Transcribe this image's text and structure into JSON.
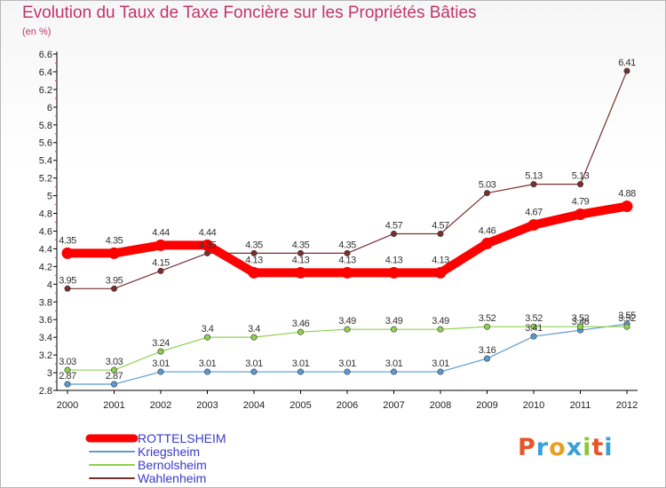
{
  "header": {
    "title": "Evolution du Taux de Taxe Foncière sur les Propriétés Bâties",
    "subtitle": "(en %)"
  },
  "logo": {
    "text": "Proxiti",
    "colors": [
      "#e8542a",
      "#3aa0d8",
      "#e8a020",
      "#3aa0d8",
      "#8cc63f",
      "#e8542a",
      "#3aa0d8"
    ]
  },
  "chart_data": {
    "type": "line",
    "x": [
      "2000",
      "2001",
      "2002",
      "2003",
      "2004",
      "2005",
      "2006",
      "2007",
      "2008",
      "2009",
      "2010",
      "2011",
      "2012"
    ],
    "ylim": [
      2.8,
      6.6
    ],
    "yticks": [
      "2.8",
      "3",
      "3.2",
      "3.4",
      "3.6",
      "3.8",
      "4",
      "4.2",
      "4.4",
      "4.6",
      "4.8",
      "5",
      "5.2",
      "5.4",
      "5.6",
      "5.8",
      "6",
      "6.2",
      "6.4",
      "6.6"
    ],
    "grid": false,
    "legend_position": "bottom-left",
    "series": [
      {
        "name": "ROTTELSHEIM",
        "color": "#ff0000",
        "values": [
          4.35,
          4.35,
          4.44,
          4.44,
          4.13,
          4.13,
          4.13,
          4.13,
          4.13,
          4.46,
          4.67,
          4.79,
          4.88
        ],
        "labels": [
          "4.35",
          "4.35",
          "4.44",
          "4.44",
          "4.13",
          "4.13",
          "4.13",
          "4.13",
          "4.13",
          "4.46",
          "4.67",
          "4.79",
          "4.88"
        ]
      },
      {
        "name": "Kriegsheim",
        "color": "#5b9bd5",
        "values": [
          2.87,
          2.87,
          3.01,
          3.01,
          3.01,
          3.01,
          3.01,
          3.01,
          3.01,
          3.16,
          3.41,
          3.48,
          3.55
        ],
        "labels": [
          "2.87",
          "2.87",
          "3.01",
          "3.01",
          "3.01",
          "3.01",
          "3.01",
          "3.01",
          "3.01",
          "3.16",
          "3.41",
          "3.48",
          "3.55"
        ]
      },
      {
        "name": "Bernolsheim",
        "color": "#8fd14f",
        "values": [
          3.03,
          3.03,
          3.24,
          3.4,
          3.4,
          3.46,
          3.49,
          3.49,
          3.49,
          3.52,
          3.52,
          3.52,
          3.52
        ],
        "labels": [
          "3.03",
          "3.03",
          "3.24",
          "3.4",
          "3.4",
          "3.46",
          "3.49",
          "3.49",
          "3.49",
          "3.52",
          "3.52",
          "3.52",
          "3.52"
        ]
      },
      {
        "name": "Wahlenheim",
        "color": "#7a2f2f",
        "values": [
          3.95,
          3.95,
          4.15,
          4.35,
          4.35,
          4.35,
          4.35,
          4.57,
          4.57,
          5.03,
          5.13,
          5.13,
          6.41
        ],
        "labels": [
          "3.95",
          "3.95",
          "4.15",
          "4.35",
          "4.35",
          "4.35",
          "4.35",
          "4.57",
          "4.57",
          "5.03",
          "5.13",
          "5.13",
          "6.41"
        ]
      }
    ]
  }
}
